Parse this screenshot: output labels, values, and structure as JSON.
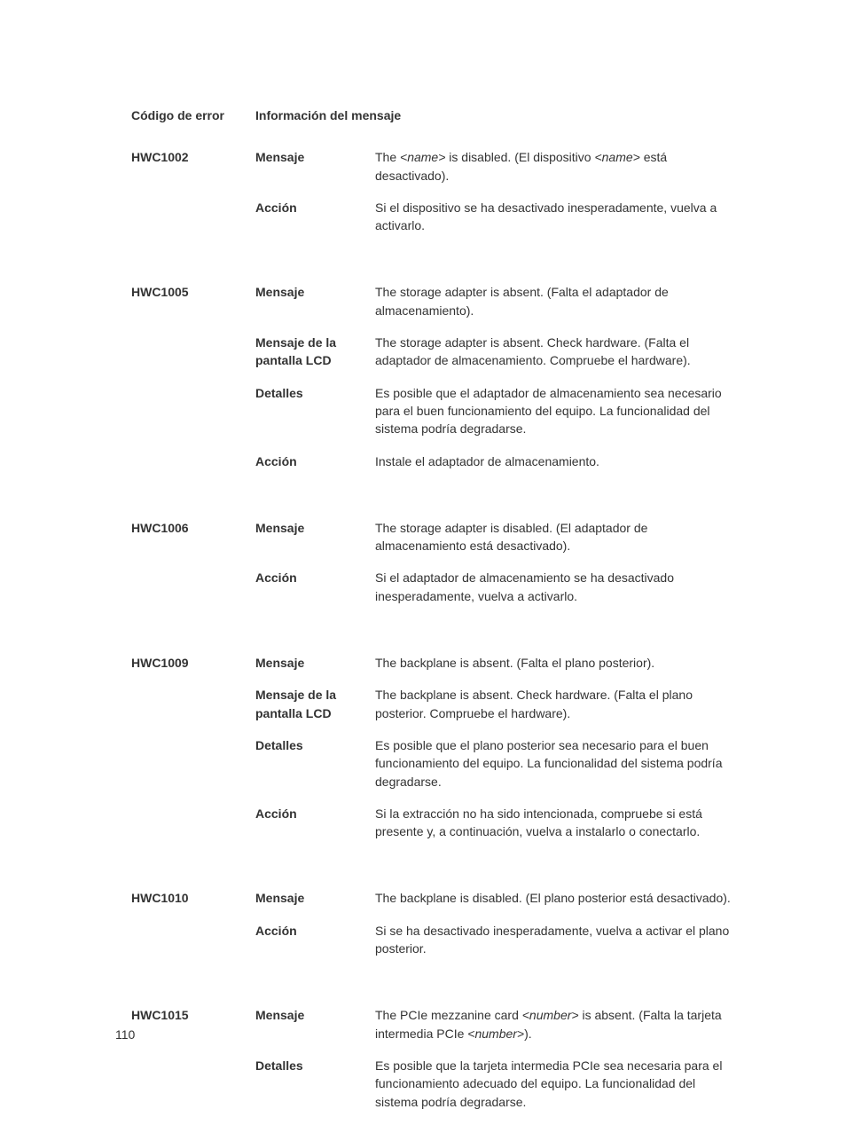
{
  "headers": {
    "code": "Código de error",
    "info": "Información del mensaje"
  },
  "fieldLabels": {
    "mensaje": "Mensaje",
    "lcd": "Mensaje de la pantalla LCD",
    "detalles": "Detalles",
    "accion": "Acción"
  },
  "errors": [
    {
      "code": "HWC1002",
      "fields": [
        {
          "type": "mensaje",
          "text": "The <name> is disabled. (El dispositivo <name> está desactivado)."
        },
        {
          "type": "accion",
          "text": "Si el dispositivo se ha desactivado inesperadamente, vuelva a activarlo."
        }
      ]
    },
    {
      "code": "HWC1005",
      "fields": [
        {
          "type": "mensaje",
          "text": "The storage adapter is absent. (Falta el adaptador de almacenamiento)."
        },
        {
          "type": "lcd",
          "text": "The storage adapter is absent. Check hardware. (Falta el adaptador de almacenamiento. Compruebe el hardware)."
        },
        {
          "type": "detalles",
          "text": "Es posible que el adaptador de almacenamiento sea necesario para el buen funcionamiento del equipo. La funcionalidad del sistema podría degradarse."
        },
        {
          "type": "accion",
          "text": "Instale el adaptador de almacenamiento."
        }
      ]
    },
    {
      "code": "HWC1006",
      "fields": [
        {
          "type": "mensaje",
          "text": "The storage adapter is disabled. (El adaptador de almacenamiento está desactivado)."
        },
        {
          "type": "accion",
          "text": "Si el adaptador de almacenamiento se ha desactivado inesperadamente, vuelva a activarlo."
        }
      ]
    },
    {
      "code": "HWC1009",
      "fields": [
        {
          "type": "mensaje",
          "text": "The backplane is absent. (Falta el plano posterior)."
        },
        {
          "type": "lcd",
          "text": "The backplane is absent. Check hardware. (Falta el plano posterior. Compruebe el hardware)."
        },
        {
          "type": "detalles",
          "text": "Es posible que el plano posterior sea necesario para el buen funcionamiento del equipo. La funcionalidad del sistema podría degradarse."
        },
        {
          "type": "accion",
          "text": "Si la extracción no ha sido intencionada, compruebe si está presente y, a continuación, vuelva a instalarlo o conectarlo."
        }
      ]
    },
    {
      "code": "HWC1010",
      "fields": [
        {
          "type": "mensaje",
          "text": "The backplane is disabled. (El plano posterior está desactivado)."
        },
        {
          "type": "accion",
          "text": "Si se ha desactivado inesperadamente, vuelva a activar el plano posterior."
        }
      ]
    },
    {
      "code": "HWC1015",
      "fields": [
        {
          "type": "mensaje",
          "text": "The PCIe mezzanine card <number> is absent. (Falta la tarjeta intermedia PCIe <number>)."
        },
        {
          "type": "detalles",
          "text": "Es posible que la tarjeta intermedia PCIe sea necesaria para el funcionamiento adecuado del equipo. La funcionalidad del sistema podría degradarse."
        }
      ]
    }
  ],
  "pageNumber": "110"
}
